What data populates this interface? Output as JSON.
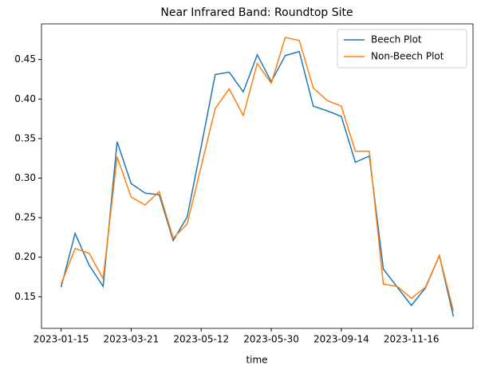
{
  "chart_data": {
    "type": "line",
    "title": "Near Infrared Band: Roundtop Site",
    "xlabel": "time",
    "categories": [
      "2023-01-15",
      null,
      null,
      null,
      null,
      "2023-03-21",
      null,
      null,
      null,
      null,
      "2023-05-12",
      null,
      null,
      null,
      null,
      "2023-05-30",
      null,
      null,
      null,
      null,
      "2023-09-14",
      null,
      null,
      null,
      null,
      "2023-11-16",
      null,
      null,
      null
    ],
    "series": [
      {
        "name": "Beech Plot",
        "color": "#1f77b4",
        "values": [
          0.162,
          0.23,
          0.19,
          0.163,
          0.346,
          0.293,
          0.281,
          0.279,
          0.221,
          0.251,
          0.34,
          0.431,
          0.434,
          0.409,
          0.456,
          0.422,
          0.455,
          0.46,
          0.391,
          0.385,
          0.378,
          0.32,
          0.328,
          0.185,
          0.162,
          0.139,
          0.161,
          0.202,
          0.125
        ]
      },
      {
        "name": "Non-Beech Plot",
        "color": "#ff7f0e",
        "values": [
          0.166,
          0.211,
          0.205,
          0.173,
          0.327,
          0.276,
          0.266,
          0.283,
          0.224,
          0.242,
          0.315,
          0.388,
          0.413,
          0.379,
          0.445,
          0.42,
          0.478,
          0.474,
          0.414,
          0.398,
          0.391,
          0.334,
          0.334,
          0.166,
          0.163,
          0.148,
          0.162,
          0.202,
          0.132
        ]
      }
    ],
    "ylim": [
      0.11,
      0.495
    ],
    "yticks": [
      {
        "value": 0.15,
        "label": "0.15"
      },
      {
        "value": 0.2,
        "label": "0.20"
      },
      {
        "value": 0.25,
        "label": "0.25"
      },
      {
        "value": 0.3,
        "label": "0.30"
      },
      {
        "value": 0.35,
        "label": "0.35"
      },
      {
        "value": 0.4,
        "label": "0.40"
      },
      {
        "value": 0.45,
        "label": "0.45"
      }
    ],
    "legend": "upper right"
  }
}
